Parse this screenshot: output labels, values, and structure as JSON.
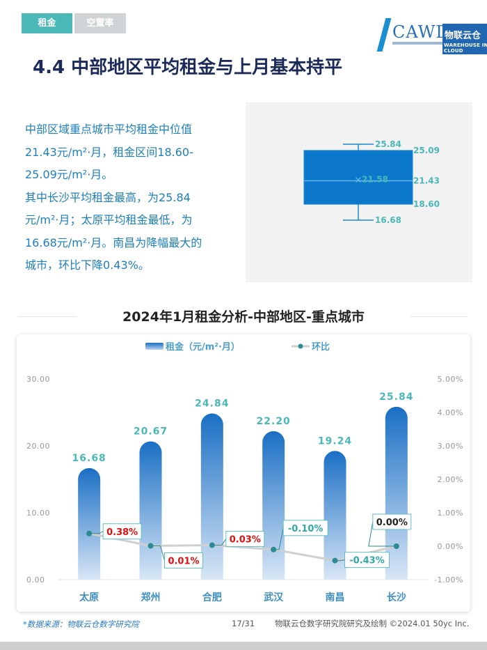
{
  "tabs": [
    {
      "label": "租金",
      "active": true
    },
    {
      "label": "空置率",
      "active": false
    }
  ],
  "logo": {
    "cawd": "CAWD",
    "brand": "物联云仓",
    "brand_sub": "WAREHOUSE IN CLOUD"
  },
  "heading": "4.4 中部地区平均租金与上月基本持平",
  "summary": {
    "lines": [
      "中部区域重点城市平均租金中位值",
      "21.43元/m²·月，租金区间18.60-",
      "25.09元/m²·月。",
      "其中长沙平均租金最高，为25.84",
      "元/m²·月；太原平均租金最低，为",
      "16.68元/m²·月。南昌为降幅最大的",
      "城市，环比下降0.43%。"
    ]
  },
  "boxplot": {
    "max": 25.84,
    "q3": 25.09,
    "mean": 21.58,
    "median": 21.43,
    "q1": 18.6,
    "min": 16.68,
    "max_label": "25.84",
    "q3_label": "25.09",
    "mean_label": "21.58",
    "median_label": "21.43",
    "q1_label": "18.60",
    "min_label": "16.68",
    "mean_marker": "×",
    "box_color": "#0b78cc"
  },
  "chart_title": "2024年1月租金分析-中部地区-重点城市",
  "chart_data": {
    "type": "bar",
    "categories": [
      "太原",
      "郑州",
      "合肥",
      "武汉",
      "南昌",
      "长沙"
    ],
    "series": [
      {
        "name": "租金（元/m²·月）",
        "type": "bar",
        "axis": "left",
        "values": [
          16.68,
          20.67,
          24.84,
          22.2,
          19.24,
          25.84
        ],
        "labels": [
          "16.68",
          "20.67",
          "24.84",
          "22.20",
          "19.24",
          "25.84"
        ]
      },
      {
        "name": "环比",
        "type": "line",
        "axis": "right",
        "values": [
          0.38,
          0.01,
          0.03,
          -0.1,
          -0.43,
          0.0
        ],
        "labels": [
          "0.38%",
          "0.01%",
          "0.03%",
          "-0.10%",
          "-0.43%",
          "0.00%"
        ]
      }
    ],
    "left_axis": {
      "ylim": [
        0,
        30
      ],
      "ticks": [
        "0.00",
        "10.00",
        "20.00",
        "30.00"
      ],
      "values": [
        0,
        10,
        20,
        30
      ]
    },
    "right_axis": {
      "ylim": [
        -1,
        5
      ],
      "ticks": [
        "-1.00%",
        "0.00%",
        "1.00%",
        "2.00%",
        "3.00%",
        "4.00%",
        "5.00%"
      ],
      "values": [
        -1,
        0,
        1,
        2,
        3,
        4,
        5
      ]
    },
    "legend": "top-center",
    "grid": false,
    "colors": {
      "bar_top": "#1a6fc4",
      "bar_bottom": "#d8e6f6",
      "bar_label": "#4bb8b8",
      "line": "#cfcfcf",
      "marker": "#2b8a92",
      "positive_label": "#e01010",
      "negative_label": "#2fa8a8",
      "tick": "#999999"
    }
  },
  "footer": {
    "source": "*数据来源：物联云仓数字研究院",
    "page": "17/31",
    "credit": "物联云仓数字研究院研究及绘制   ©2024.01 50yc Inc."
  }
}
